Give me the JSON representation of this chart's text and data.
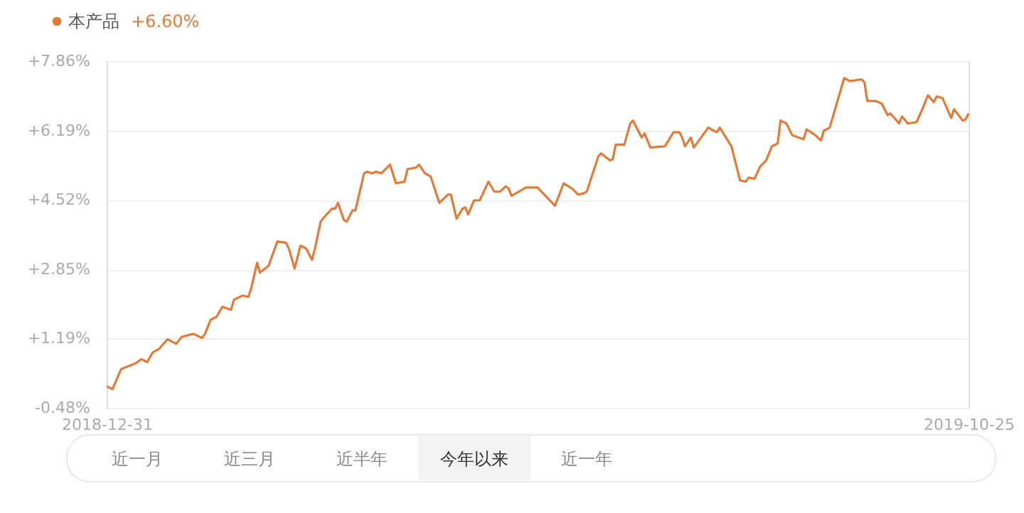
{
  "chart_data": {
    "type": "line",
    "x": [
      "2018-12-31",
      "2019-01-02",
      "2019-01-05",
      "2019-01-10",
      "2019-01-12",
      "2019-01-14",
      "2019-01-16",
      "2019-01-18",
      "2019-01-21",
      "2019-01-24",
      "2019-01-26",
      "2019-01-30",
      "2019-02-02",
      "2019-02-03",
      "2019-02-05",
      "2019-02-07",
      "2019-02-09",
      "2019-02-12",
      "2019-02-13",
      "2019-02-16",
      "2019-02-18",
      "2019-02-19",
      "2019-02-21",
      "2019-02-22",
      "2019-02-25",
      "2019-02-28",
      "2019-03-03",
      "2019-03-04",
      "2019-03-06",
      "2019-03-08",
      "2019-03-10",
      "2019-03-12",
      "2019-03-13",
      "2019-03-15",
      "2019-03-17",
      "2019-03-19",
      "2019-03-20",
      "2019-03-21",
      "2019-03-23",
      "2019-03-24",
      "2019-03-26",
      "2019-03-27",
      "2019-03-30",
      "2019-03-31",
      "2019-04-02",
      "2019-04-03",
      "2019-04-05",
      "2019-04-08",
      "2019-04-10",
      "2019-04-13",
      "2019-04-14",
      "2019-04-17",
      "2019-04-18",
      "2019-04-20",
      "2019-04-22",
      "2019-04-25",
      "2019-04-28",
      "2019-04-29",
      "2019-05-01",
      "2019-05-03",
      "2019-05-04",
      "2019-05-05",
      "2019-05-07",
      "2019-05-09",
      "2019-05-12",
      "2019-05-14",
      "2019-05-16",
      "2019-05-18",
      "2019-05-19",
      "2019-05-20",
      "2019-05-25",
      "2019-05-29",
      "2019-06-04",
      "2019-06-07",
      "2019-06-10",
      "2019-06-12",
      "2019-06-14",
      "2019-06-15",
      "2019-06-19",
      "2019-06-20",
      "2019-06-23",
      "2019-06-24",
      "2019-06-25",
      "2019-06-28",
      "2019-06-30",
      "2019-07-01",
      "2019-07-04",
      "2019-07-05",
      "2019-07-07",
      "2019-07-12",
      "2019-07-15",
      "2019-07-17",
      "2019-07-18",
      "2019-07-19",
      "2019-07-21",
      "2019-07-22",
      "2019-07-27",
      "2019-07-28",
      "2019-07-30",
      "2019-07-31",
      "2019-08-04",
      "2019-08-07",
      "2019-08-09",
      "2019-08-10",
      "2019-08-12",
      "2019-08-14",
      "2019-08-16",
      "2019-08-18",
      "2019-08-20",
      "2019-08-21",
      "2019-08-23",
      "2019-08-25",
      "2019-08-29",
      "2019-08-30",
      "2019-09-02",
      "2019-09-04",
      "2019-09-05",
      "2019-09-07",
      "2019-09-12",
      "2019-09-14",
      "2019-09-18",
      "2019-09-19",
      "2019-09-20",
      "2019-09-23",
      "2019-09-25",
      "2019-09-27",
      "2019-09-28",
      "2019-10-01",
      "2019-10-02",
      "2019-10-04",
      "2019-10-07",
      "2019-10-09",
      "2019-10-11",
      "2019-10-13",
      "2019-10-14",
      "2019-10-16",
      "2019-10-19",
      "2019-10-20",
      "2019-10-23",
      "2019-10-24",
      "2019-10-25"
    ],
    "series": [
      {
        "name": "本产品",
        "color": "#e07b39",
        "values": [
          0.04,
          -0.03,
          0.45,
          0.59,
          0.69,
          0.62,
          0.86,
          0.93,
          1.17,
          1.06,
          1.23,
          1.3,
          1.2,
          1.3,
          1.64,
          1.71,
          1.95,
          1.88,
          2.12,
          2.22,
          2.19,
          2.4,
          3.01,
          2.77,
          2.94,
          3.52,
          3.49,
          3.35,
          2.87,
          3.42,
          3.35,
          3.08,
          3.35,
          4.0,
          4.17,
          4.31,
          4.31,
          4.45,
          4.04,
          4.0,
          4.27,
          4.27,
          5.16,
          5.2,
          5.16,
          5.2,
          5.16,
          5.37,
          4.92,
          4.96,
          5.26,
          5.3,
          5.37,
          5.16,
          5.09,
          4.45,
          4.65,
          4.65,
          4.07,
          4.31,
          4.34,
          4.17,
          4.51,
          4.51,
          4.96,
          4.72,
          4.72,
          4.85,
          4.79,
          4.62,
          4.82,
          4.82,
          4.38,
          4.92,
          4.79,
          4.65,
          4.68,
          4.72,
          5.57,
          5.64,
          5.47,
          5.5,
          5.85,
          5.85,
          6.36,
          6.43,
          6.02,
          6.12,
          5.78,
          5.81,
          6.15,
          6.15,
          6.02,
          5.81,
          6.02,
          5.78,
          6.26,
          6.22,
          6.15,
          6.26,
          5.81,
          4.99,
          4.96,
          5.06,
          5.03,
          5.33,
          5.47,
          5.81,
          5.88,
          6.43,
          6.36,
          6.08,
          5.98,
          6.22,
          6.08,
          5.95,
          6.19,
          6.26,
          7.45,
          7.38,
          7.42,
          7.35,
          6.9,
          6.9,
          6.84,
          6.56,
          6.6,
          6.36,
          6.53,
          6.36,
          6.39,
          6.7,
          7.04,
          6.87,
          7.01,
          6.97,
          6.49,
          6.7,
          6.43,
          6.46,
          6.6
        ]
      }
    ],
    "xlim": [
      "2018-12-31",
      "2019-10-25"
    ],
    "xticks": [
      "2018-12-31",
      "2019-10-25"
    ],
    "ylim": [
      -0.48,
      7.86
    ],
    "yticks": [
      {
        "value": -0.48,
        "label": "-0.48%"
      },
      {
        "value": 1.19,
        "label": "+1.19%"
      },
      {
        "value": 2.85,
        "label": "+2.85%"
      },
      {
        "value": 4.52,
        "label": "+4.52%"
      },
      {
        "value": 6.19,
        "label": "+6.19%"
      },
      {
        "value": 7.86,
        "label": "+7.86%"
      }
    ],
    "grid": "y",
    "legend": "top left",
    "marker": "none",
    "line_style": "solid",
    "annotations": [
      "+6.60%",
      "近一月",
      "近三月",
      "近半年",
      "今年以来",
      "近一年"
    ]
  }
}
